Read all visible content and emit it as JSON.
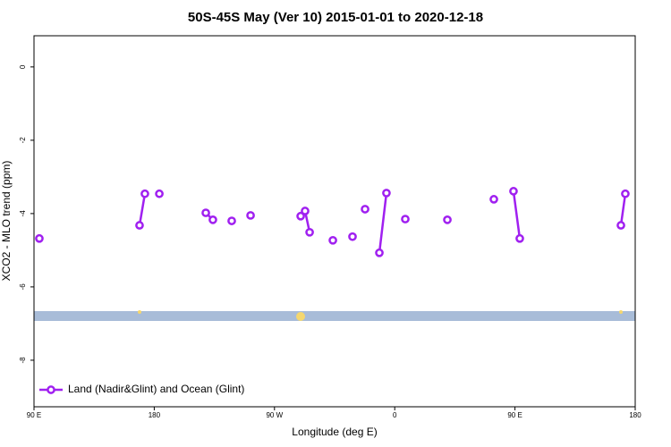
{
  "chart_data": {
    "type": "line",
    "title": "50S-45S May (Ver 10)   2015-01-01 to 2020-12-18",
    "x_label": "Longitude (deg E)",
    "y_label": "XCO2 - MLO trend (ppm)",
    "xlim": [
      90,
      540
    ],
    "ylim": [
      -9.27,
      0.85
    ],
    "xticks": [
      {
        "value": 90,
        "label": "90 E"
      },
      180,
      {
        "value": 270,
        "label": "90 W"
      },
      {
        "value": 360,
        "label": "0"
      },
      {
        "value": 450,
        "label": "90 E"
      },
      {
        "value": 540,
        "label": "180"
      }
    ],
    "yticks": [
      0,
      -2,
      -4,
      -6,
      -8
    ],
    "legend": "bottom-left",
    "series": [
      {
        "name": "Land (Nadir&Glint) and Ocean (Glint)",
        "color": "#a020f0",
        "x": [
          94.0,
          null,
          169.0,
          173.0,
          null,
          183.8,
          null,
          218.6,
          223.9,
          null,
          238.0,
          null,
          252.1,
          null,
          289.6,
          292.9,
          296.3,
          null,
          313.7,
          null,
          328.4,
          null,
          337.8,
          null,
          348.5,
          353.8,
          null,
          367.9,
          null,
          399.4,
          null,
          434.2,
          null,
          448.9,
          453.6,
          null,
          529.3,
          532.6
        ],
        "values": [
          -4.68,
          null,
          -4.32,
          -3.46,
          null,
          -3.46,
          null,
          -3.98,
          -4.17,
          null,
          -4.2,
          null,
          -4.05,
          null,
          -4.07,
          -3.93,
          -4.51,
          null,
          -4.73,
          null,
          -4.63,
          null,
          -3.88,
          null,
          -5.07,
          -3.44,
          null,
          -4.15,
          null,
          -4.17,
          null,
          -3.61,
          null,
          -3.39,
          -4.68,
          null,
          -4.32,
          -3.46
        ]
      }
    ]
  }
}
